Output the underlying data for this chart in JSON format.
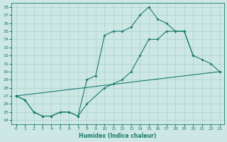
{
  "xlabel": "Humidex (Indice chaleur)",
  "background_color": "#cde8e4",
  "grid_color": "#b0d4ce",
  "line_color": "#1a7a6e",
  "xlim": [
    -0.5,
    23.5
  ],
  "ylim": [
    23.5,
    38.5
  ],
  "xticks": [
    0,
    1,
    2,
    3,
    4,
    5,
    6,
    7,
    8,
    9,
    10,
    11,
    12,
    13,
    14,
    15,
    16,
    17,
    18,
    19,
    20,
    21,
    22,
    23
  ],
  "yticks": [
    24,
    25,
    26,
    27,
    28,
    29,
    30,
    31,
    32,
    33,
    34,
    35,
    36,
    37,
    38
  ],
  "curve_main": {
    "x": [
      0,
      1,
      2,
      3,
      4,
      5,
      6,
      7,
      8,
      9,
      10,
      11,
      12,
      13,
      14,
      15,
      16,
      17,
      18,
      19,
      20
    ],
    "y": [
      27,
      26.5,
      25,
      24.5,
      24.5,
      25,
      25,
      24.5,
      29,
      29.5,
      34.5,
      35,
      35,
      35.5,
      37,
      38,
      36.5,
      36,
      35,
      35,
      32
    ]
  },
  "curve_low": {
    "x": [
      0,
      23
    ],
    "y": [
      27,
      30
    ]
  },
  "curve_mid": {
    "x": [
      0,
      1,
      2,
      3,
      4,
      5,
      6,
      7,
      8,
      10,
      11,
      12,
      13,
      14,
      15,
      16,
      17,
      18,
      19,
      20,
      21,
      22,
      23
    ],
    "y": [
      27,
      26.5,
      25,
      24.5,
      24.5,
      25,
      25,
      24.5,
      26,
      28,
      28.5,
      29,
      30,
      32,
      34,
      34,
      35,
      35,
      35,
      32,
      31.5,
      31,
      30
    ]
  }
}
